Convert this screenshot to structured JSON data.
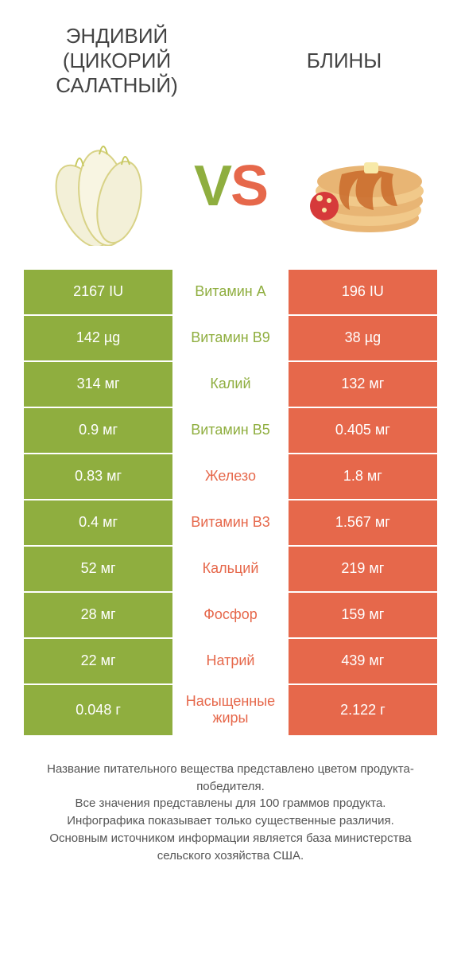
{
  "titles": {
    "left": "ЭНДИВИЙ (ЦИКОРИЙ САЛАТНЫЙ)",
    "right": "БЛИНЫ"
  },
  "vs": {
    "v": "V",
    "s": "S"
  },
  "colors": {
    "green": "#8fae3f",
    "orange": "#e6684b",
    "white": "#ffffff"
  },
  "rows": [
    {
      "left": "2167 IU",
      "mid": "Витамин A",
      "right": "196 IU",
      "winner": "left"
    },
    {
      "left": "142 µg",
      "mid": "Витамин B9",
      "right": "38 µg",
      "winner": "left"
    },
    {
      "left": "314 мг",
      "mid": "Калий",
      "right": "132 мг",
      "winner": "left"
    },
    {
      "left": "0.9 мг",
      "mid": "Витамин B5",
      "right": "0.405 мг",
      "winner": "left"
    },
    {
      "left": "0.83 мг",
      "mid": "Железо",
      "right": "1.8 мг",
      "winner": "right"
    },
    {
      "left": "0.4 мг",
      "mid": "Витамин B3",
      "right": "1.567 мг",
      "winner": "right"
    },
    {
      "left": "52 мг",
      "mid": "Кальций",
      "right": "219 мг",
      "winner": "right"
    },
    {
      "left": "28 мг",
      "mid": "Фосфор",
      "right": "159 мг",
      "winner": "right"
    },
    {
      "left": "22 мг",
      "mid": "Натрий",
      "right": "439 мг",
      "winner": "right"
    },
    {
      "left": "0.048 г",
      "mid": "Насыщенные жиры",
      "right": "2.122 г",
      "winner": "right"
    }
  ],
  "footer": [
    "Название питательного вещества представлено цветом продукта-победителя.",
    "Все значения представлены для 100 граммов продукта.",
    "Инфографика показывает только существенные различия.",
    "Основным источником информации является база министерства сельского хозяйства США."
  ]
}
